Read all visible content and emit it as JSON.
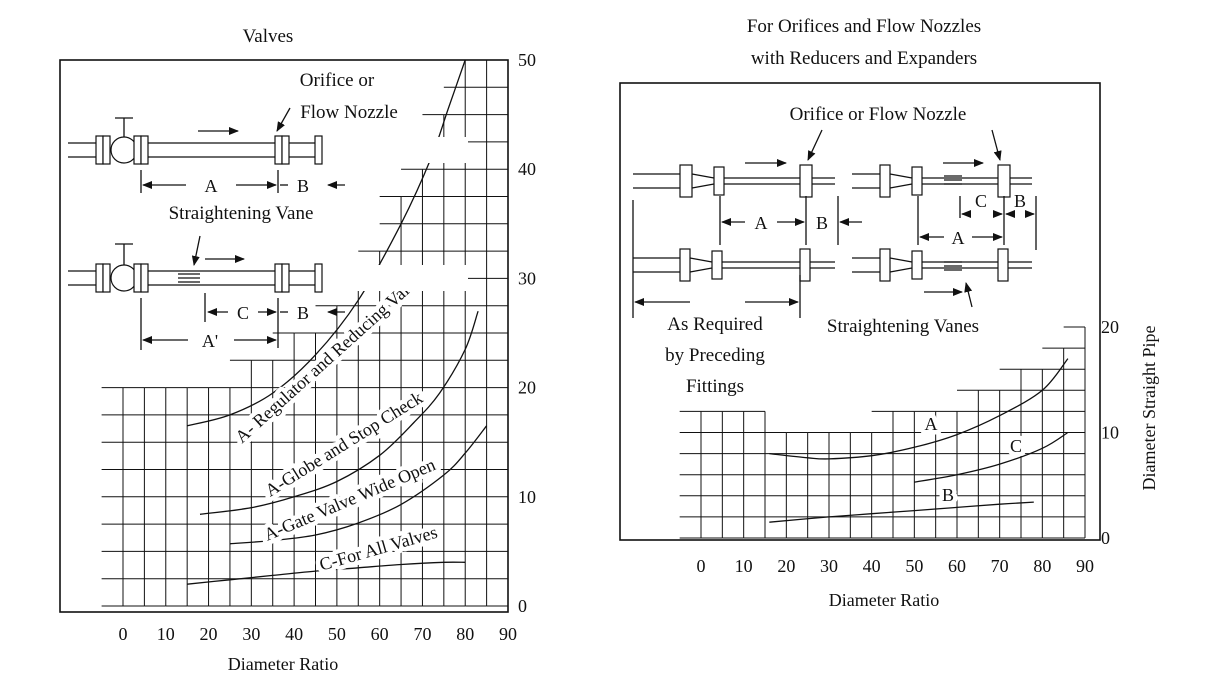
{
  "chart_data": [
    {
      "type": "line",
      "title": "Valves",
      "xlabel": "Diameter Ratio",
      "ylabel": "",
      "x_ticks": [
        "0",
        "10",
        "20",
        "30",
        "40",
        "50",
        "60",
        "70",
        "80",
        "90"
      ],
      "y_ticks": [
        "0",
        "10",
        "20",
        "30",
        "40",
        "50"
      ],
      "xlim": [
        -10,
        93
      ],
      "ylim": [
        0,
        50
      ],
      "grid": true,
      "series": [
        {
          "name": "A- Regulator and Reducing Valves",
          "x": [
            15,
            25,
            35,
            45,
            55,
            65,
            72,
            76,
            80
          ],
          "y": [
            16.5,
            17.5,
            19.5,
            23,
            28,
            35,
            41,
            45.5,
            50
          ]
        },
        {
          "name": "A-Globe and Stop Check",
          "x": [
            18,
            30,
            40,
            50,
            60,
            68,
            74,
            80,
            83
          ],
          "y": [
            8.4,
            9,
            10,
            11.4,
            13.8,
            16.8,
            19.5,
            23.5,
            27
          ]
        },
        {
          "name": "A-Gate Valve Wide Open",
          "x": [
            25,
            35,
            45,
            55,
            65,
            75,
            80,
            85
          ],
          "y": [
            5.7,
            6,
            6.5,
            7.6,
            9.3,
            12,
            14,
            16.5
          ]
        },
        {
          "name": "C-For All Valves",
          "x": [
            15,
            25,
            35,
            45,
            55,
            65,
            75,
            80
          ],
          "y": [
            2,
            2.4,
            2.8,
            3.2,
            3.5,
            3.8,
            4,
            4
          ]
        }
      ],
      "diagrams": {
        "orifice_label_line1": "Orifice or",
        "orifice_label_line2": "Flow Nozzle",
        "vane_label": "Straightening Vane",
        "dim_A": "A",
        "dim_B": "B",
        "dim_C": "C",
        "dim_A_prime": "A'"
      }
    },
    {
      "type": "line",
      "title_line1": "For Orifices and Flow Nozzles",
      "title_line2": "with Reducers and Expanders",
      "xlabel": "Diameter Ratio",
      "ylabel": "Diameter Straight Pipe",
      "x_ticks": [
        "0",
        "10",
        "20",
        "30",
        "40",
        "50",
        "60",
        "70",
        "80",
        "90"
      ],
      "y_ticks": [
        "0",
        "10",
        "20"
      ],
      "xlim": [
        -10,
        93
      ],
      "ylim": [
        0,
        22
      ],
      "grid": true,
      "series": [
        {
          "name": "A",
          "x": [
            16,
            25,
            30,
            40,
            50,
            60,
            70,
            80,
            86
          ],
          "y": [
            8,
            7.6,
            7.5,
            7.8,
            8.6,
            9.8,
            11.6,
            14,
            17
          ]
        },
        {
          "name": "C",
          "x": [
            50,
            60,
            70,
            80,
            86
          ],
          "y": [
            5.3,
            6,
            7,
            8.5,
            10
          ]
        },
        {
          "name": "B",
          "x": [
            16,
            30,
            40,
            50,
            60,
            70,
            78
          ],
          "y": [
            1.5,
            2,
            2.3,
            2.6,
            2.9,
            3.2,
            3.4
          ]
        }
      ],
      "diagrams": {
        "orifice_label": "Orifice or Flow Nozzle",
        "vanes_label": "Straightening Vanes",
        "required_line1": "As Required",
        "required_line2": "by Preceding",
        "required_line3": "Fittings",
        "dim_A": "A",
        "dim_B": "B",
        "dim_C": "C"
      }
    }
  ]
}
